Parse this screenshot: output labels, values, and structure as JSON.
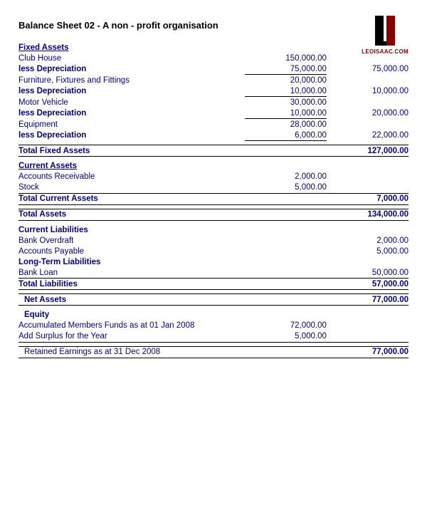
{
  "title": "Balance Sheet 02 - A non - profit organisation",
  "logo_text": "LEOISAAC.COM",
  "fixed_assets": {
    "heading": "Fixed Assets",
    "rows": [
      {
        "label": "Club House",
        "c1": "150,000.00",
        "c2": ""
      },
      {
        "label": "less Depreciation",
        "c1": "75,000.00",
        "c2": "75,000.00",
        "under": true
      },
      {
        "label": "Furniture, Fixtures and Fittings",
        "c1": "20,000.00",
        "c2": ""
      },
      {
        "label": "less Depreciation",
        "c1": "10,000.00",
        "c2": "10,000.00",
        "under": true
      },
      {
        "label": "Motor Vehicle",
        "c1": "30,000.00",
        "c2": ""
      },
      {
        "label": "less Depreciation",
        "c1": "10,000.00",
        "c2": "20,000.00",
        "under": true
      },
      {
        "label": "Equipment",
        "c1": "28,000.00",
        "c2": ""
      },
      {
        "label": "less Depreciation",
        "c1": "6,000.00",
        "c2": "22,000.00",
        "under": true
      }
    ],
    "total_label": "Total Fixed Assets",
    "total": "127,000.00"
  },
  "current_assets": {
    "heading": "Current Assets",
    "rows": [
      {
        "label": "Accounts Receivable",
        "c1": "2,000.00",
        "c2": ""
      },
      {
        "label": "Stock",
        "c1": "5,000.00",
        "c2": ""
      }
    ],
    "total_label": "Total Current Assets",
    "total": "7,000.00"
  },
  "total_assets": {
    "label": "Total Assets",
    "value": "134,000.00"
  },
  "liabilities": {
    "current_heading": "Current Liabilities",
    "current_rows": [
      {
        "label": "Bank Overdraft",
        "c2": "2,000.00"
      },
      {
        "label": "Accounts Payable",
        "c2": "5,000.00"
      }
    ],
    "long_heading": "Long-Term Liabilities",
    "long_rows": [
      {
        "label": "Bank Loan",
        "c2": "50,000.00"
      }
    ],
    "total_label": "Total Liabilities",
    "total": "57,000.00"
  },
  "net_assets": {
    "label": "Net Assets",
    "value": "77,000.00"
  },
  "equity": {
    "heading": "Equity",
    "rows": [
      {
        "label": "Accumulated Members Funds as at 01 Jan 2008",
        "c1": "72,000.00"
      },
      {
        "label": "Add Surplus for the Year",
        "c1": "5,000.00"
      }
    ],
    "retained_label": "Retained Earnings as at 31 Dec 2008",
    "retained": "77,000.00"
  }
}
